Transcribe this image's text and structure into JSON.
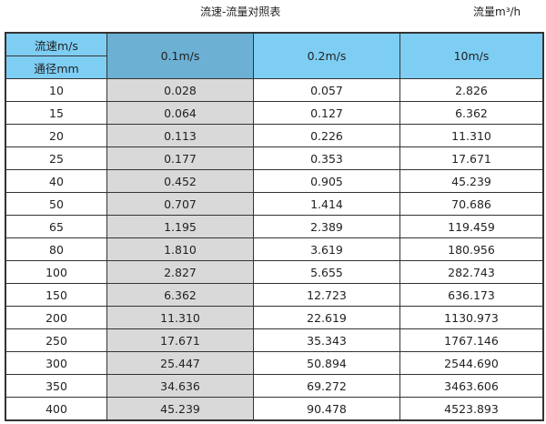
{
  "title": "流速-流量对照表",
  "unit_label": "流量m³/h",
  "header": {
    "velocity_label": "流速m/s",
    "diameter_label": "通径mm",
    "columns": [
      "0.1m/s",
      "0.2m/s",
      "10m/s"
    ]
  },
  "colors": {
    "header": "#7ecef4",
    "highlight_header": "#6cb0d4",
    "highlight_column": "#d9d9d9"
  },
  "rows": [
    [
      "10",
      "0.028",
      "0.057",
      "2.826"
    ],
    [
      "15",
      "0.064",
      "0.127",
      "6.362"
    ],
    [
      "20",
      "0.113",
      "0.226",
      "11.310"
    ],
    [
      "25",
      "0.177",
      "0.353",
      "17.671"
    ],
    [
      "40",
      "0.452",
      "0.905",
      "45.239"
    ],
    [
      "50",
      "0.707",
      "1.414",
      "70.686"
    ],
    [
      "65",
      "1.195",
      "2.389",
      "119.459"
    ],
    [
      "80",
      "1.810",
      "3.619",
      "180.956"
    ],
    [
      "100",
      "2.827",
      "5.655",
      "282.743"
    ],
    [
      "150",
      "6.362",
      "12.723",
      "636.173"
    ],
    [
      "200",
      "11.310",
      "22.619",
      "1130.973"
    ],
    [
      "250",
      "17.671",
      "35.343",
      "1767.146"
    ],
    [
      "300",
      "25.447",
      "50.894",
      "2544.690"
    ],
    [
      "350",
      "34.636",
      "69.272",
      "3463.606"
    ],
    [
      "400",
      "45.239",
      "90.478",
      "4523.893"
    ]
  ]
}
